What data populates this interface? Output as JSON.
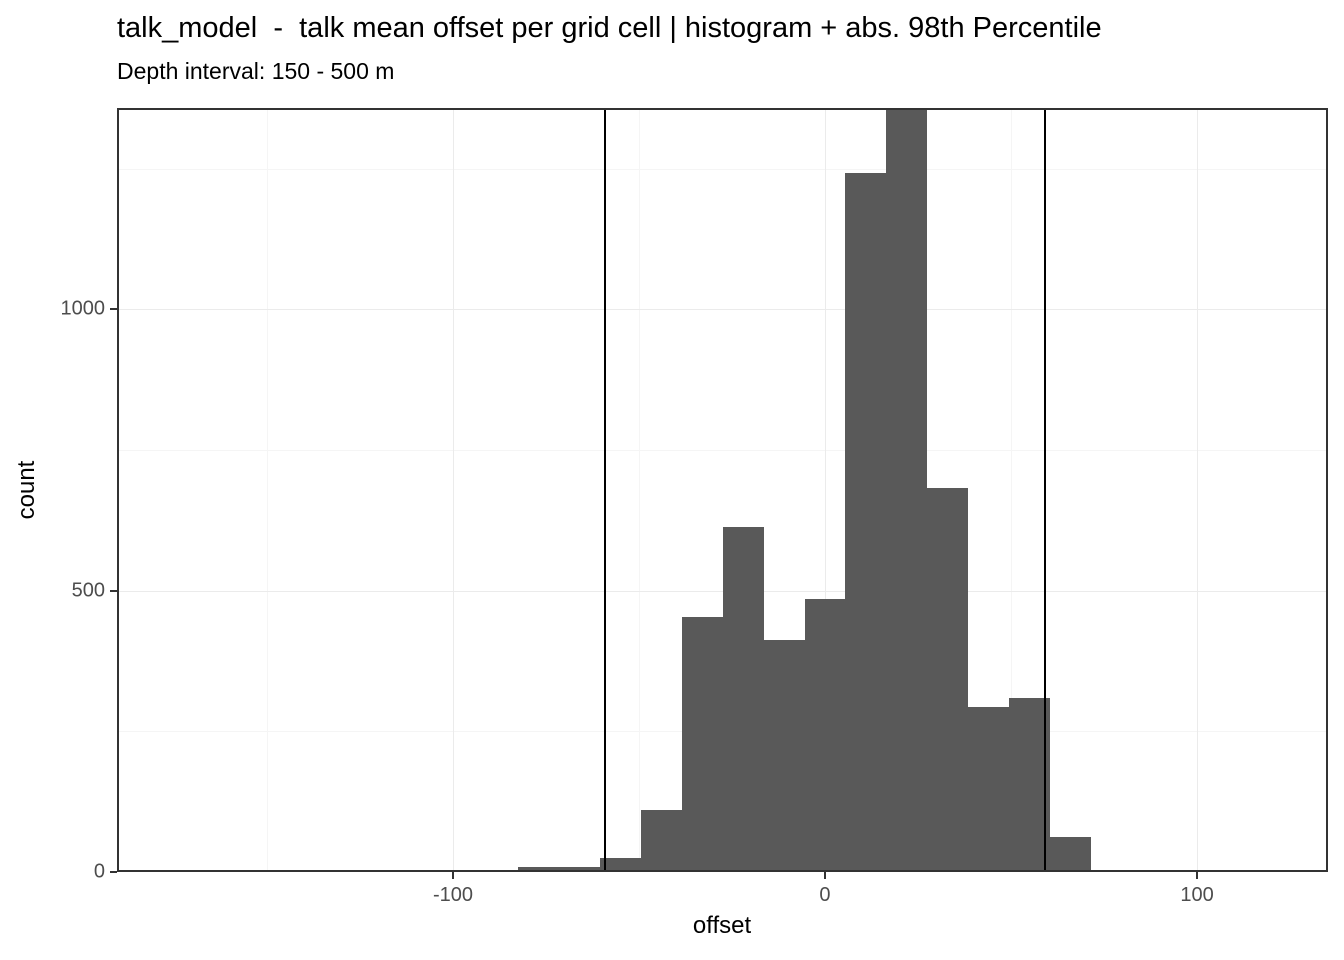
{
  "title": "talk_model  -  talk mean offset per grid cell | histogram + abs. 98th Percentile",
  "subtitle": "Depth interval: 150 - 500 m",
  "chart_data": {
    "type": "bar",
    "variant": "histogram",
    "title": "talk_model  -  talk mean offset per grid cell | histogram + abs. 98th Percentile",
    "subtitle": "Depth interval: 150 - 500 m",
    "xlabel": "offset",
    "ylabel": "count",
    "xlim": [
      -190.3,
      135.2
    ],
    "ylim": [
      0,
      1358
    ],
    "x_major_ticks": [
      -100,
      0,
      100
    ],
    "x_minor_gridlines": [
      -150,
      -50,
      50
    ],
    "y_major_ticks": [
      0,
      500,
      1000
    ],
    "y_minor_gridlines": [
      250,
      750,
      1250
    ],
    "grid": true,
    "legend_position": "none",
    "binwidth": 11,
    "bins": [
      {
        "center": -88,
        "count": 3
      },
      {
        "center": -77,
        "count": 8
      },
      {
        "center": -66,
        "count": 8
      },
      {
        "center": -55,
        "count": 25
      },
      {
        "center": -44,
        "count": 110
      },
      {
        "center": -33,
        "count": 453
      },
      {
        "center": -22,
        "count": 613
      },
      {
        "center": -11,
        "count": 412
      },
      {
        "center": 0,
        "count": 485
      },
      {
        "center": 11,
        "count": 1242
      },
      {
        "center": 22,
        "count": 1400,
        "clipped": true
      },
      {
        "center": 33,
        "count": 682
      },
      {
        "center": 44,
        "count": 293
      },
      {
        "center": 55,
        "count": 309
      },
      {
        "center": 66,
        "count": 62
      },
      {
        "center": 77,
        "count": 3
      },
      {
        "center": 88,
        "count": 3
      }
    ],
    "note": "tallest bin is clipped at the top of the visible y range",
    "vlines": [
      -59.2,
      59.2
    ],
    "colors": {
      "bar_fill": "#595959",
      "vline": "#000000",
      "panel_border": "#333333",
      "grid_major": "#ebebeb",
      "grid_minor": "#f5f5f5",
      "tick_label": "#4d4d4d",
      "text": "#000000",
      "background": "#ffffff"
    }
  }
}
